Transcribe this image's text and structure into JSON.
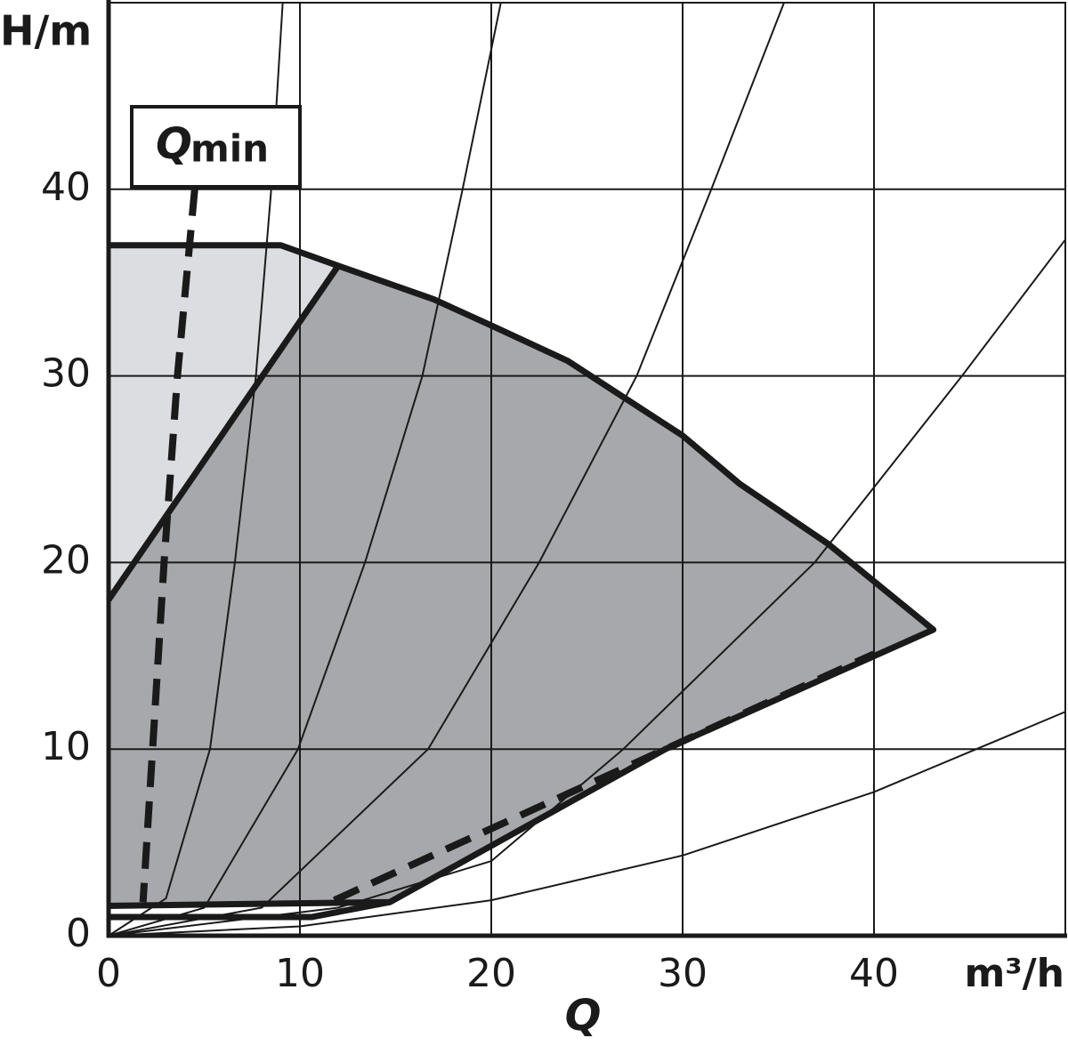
{
  "chart_data": {
    "type": "line",
    "y_label": "H/m",
    "x_unit": "m³/h",
    "x_label": "Q",
    "annotation": {
      "main": "Q",
      "sub": "min"
    },
    "xlim": [
      0,
      50
    ],
    "ylim": [
      0,
      50
    ],
    "xticks": [
      0,
      10,
      20,
      30,
      40
    ],
    "yticks": [
      0,
      10,
      20,
      30,
      40
    ],
    "grid": true,
    "series": [
      {
        "fill": "#dcdde0",
        "x": [
          0,
          9,
          12,
          0
        ],
        "values": [
          37,
          37,
          35.9,
          18
        ]
      },
      {
        "fill": "#a7a8ab",
        "x": [
          0,
          12,
          17,
          20,
          24,
          27,
          30,
          33,
          37.6,
          43.1,
          29.1,
          14.7,
          0
        ],
        "values": [
          18,
          35.9,
          34.1,
          32.7,
          30.8,
          28.8,
          26.8,
          24.2,
          21.0,
          16.4,
          10.0,
          1.8,
          1.6
        ]
      },
      {
        "color": "#1a1a1a",
        "width": 2,
        "x": [
          0,
          3,
          5.3,
          6.6,
          7.7,
          8.5,
          9.1
        ],
        "values": [
          0,
          2,
          10,
          20,
          30,
          40,
          50
        ]
      },
      {
        "color": "#1a1a1a",
        "width": 2,
        "x": [
          0,
          5,
          9.9,
          13.4,
          16.4,
          18.5,
          20.5
        ],
        "values": [
          0,
          1.5,
          10,
          20,
          30,
          40,
          50
        ]
      },
      {
        "color": "#1a1a1a",
        "width": 2,
        "x": [
          0,
          8,
          16.7,
          22.5,
          27.6,
          31.5,
          35.3
        ],
        "values": [
          0,
          1.5,
          10,
          20,
          30,
          40,
          50
        ]
      },
      {
        "color": "#1a1a1a",
        "width": 2,
        "x": [
          0,
          12,
          20,
          26.9,
          36.9,
          44.6,
          50
        ],
        "values": [
          0,
          1.5,
          4,
          10,
          20,
          30,
          37.3
        ]
      },
      {
        "color": "#1a1a1a",
        "width": 2,
        "x": [
          0,
          10,
          20,
          30,
          40,
          50
        ],
        "values": [
          0,
          0.5,
          1.9,
          4.3,
          7.7,
          12
        ]
      },
      {
        "color": "#1a1a1a",
        "width": 7,
        "x": [
          0,
          9,
          12,
          17,
          20,
          24,
          27,
          30,
          33,
          37.6,
          43.1,
          29.1,
          14.7,
          0
        ],
        "values": [
          37,
          37,
          35.9,
          34.1,
          32.7,
          30.8,
          28.8,
          26.8,
          24.2,
          21.0,
          16.4,
          10.0,
          1.8,
          1.6
        ]
      },
      {
        "color": "#1a1a1a",
        "width": 7,
        "x": [
          0,
          12
        ],
        "values": [
          18,
          35.9
        ]
      },
      {
        "color": "#1a1a1a",
        "width": 7,
        "x": [
          0,
          10.6,
          14.7
        ],
        "values": [
          1.0,
          1.0,
          1.8
        ]
      },
      {
        "color": "#1a1a1a",
        "width": 8,
        "dash": true,
        "x": [
          11.8,
          40
        ],
        "values": [
          1.9,
          15.1
        ]
      },
      {
        "color": "#1a1a1a",
        "width": 8,
        "dash": true,
        "x": [
          4.5,
          3.6,
          2.9,
          2.3,
          1.8
        ],
        "values": [
          40,
          30,
          20,
          10,
          1.8
        ]
      }
    ]
  }
}
